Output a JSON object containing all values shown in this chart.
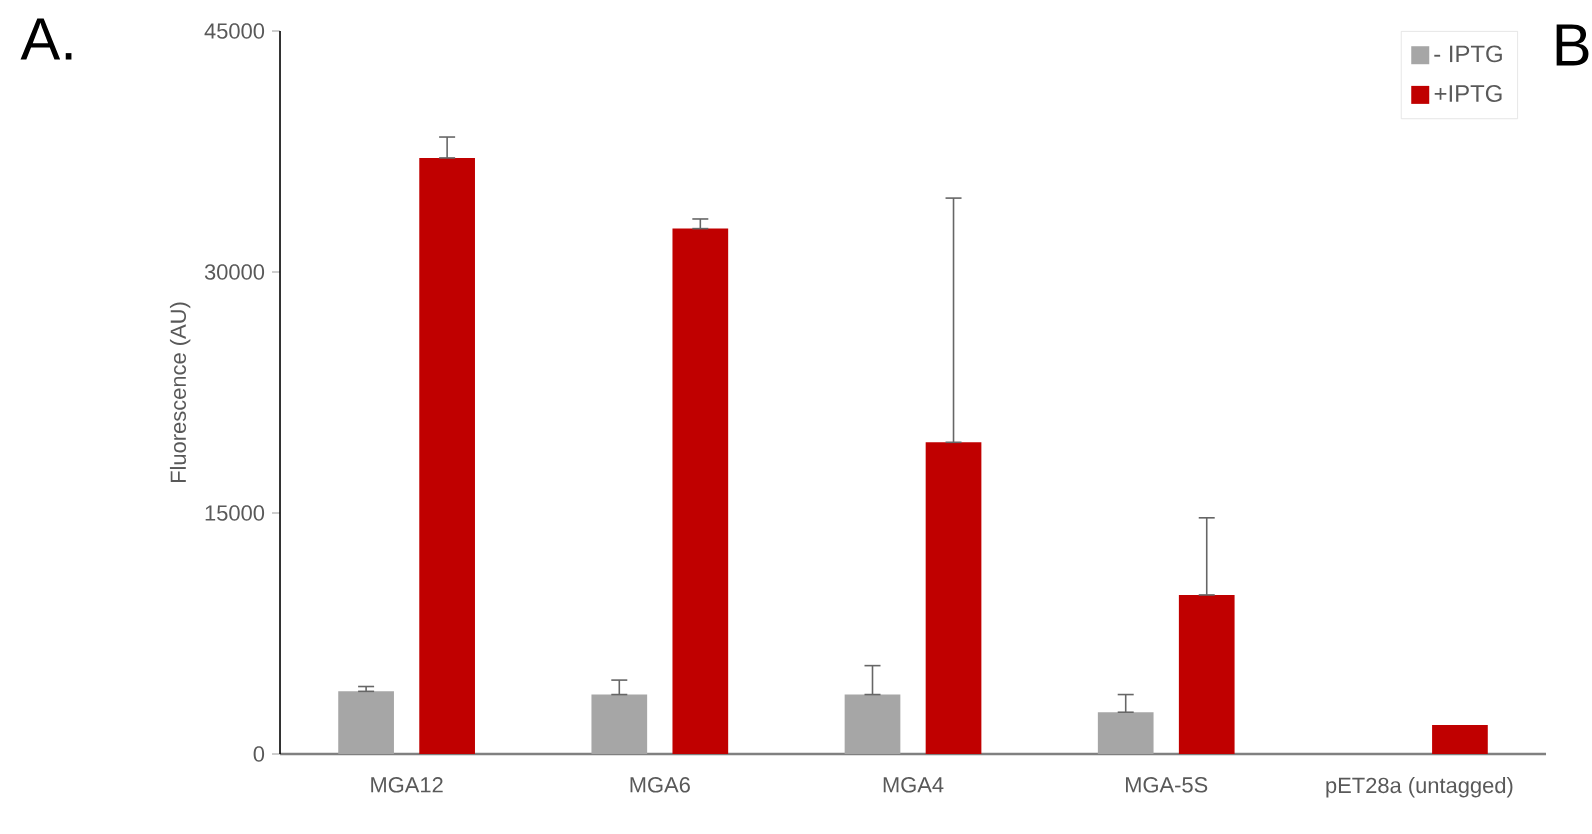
{
  "chart_data": {
    "type": "bar",
    "ylabel": "Fluorescence (AU)",
    "categories": [
      "MGA12",
      "MGA6",
      "MGA4",
      "MGA-5S",
      "pET28a (untagged)"
    ],
    "series": [
      {
        "name": "- IPTG",
        "color": "#a6a6a6",
        "values": [
          3900,
          3700,
          3700,
          2600,
          null
        ],
        "errors": [
          [
            3900,
            4200
          ],
          [
            3700,
            4600
          ],
          [
            3700,
            5500
          ],
          [
            2600,
            3700
          ],
          null
        ]
      },
      {
        "name": "+IPTG",
        "color": "#c00000",
        "values": [
          37100,
          32700,
          19400,
          9900,
          1800
        ],
        "errors": [
          [
            37100,
            38400
          ],
          [
            32700,
            33300
          ],
          [
            19400,
            34600
          ],
          [
            9900,
            14700
          ],
          null
        ]
      }
    ],
    "ylim": [
      0,
      45000
    ],
    "yticks": [
      0,
      15000,
      30000,
      45000
    ],
    "legend": "top right",
    "grid": false,
    "annotations": [
      "A.",
      "B"
    ]
  }
}
